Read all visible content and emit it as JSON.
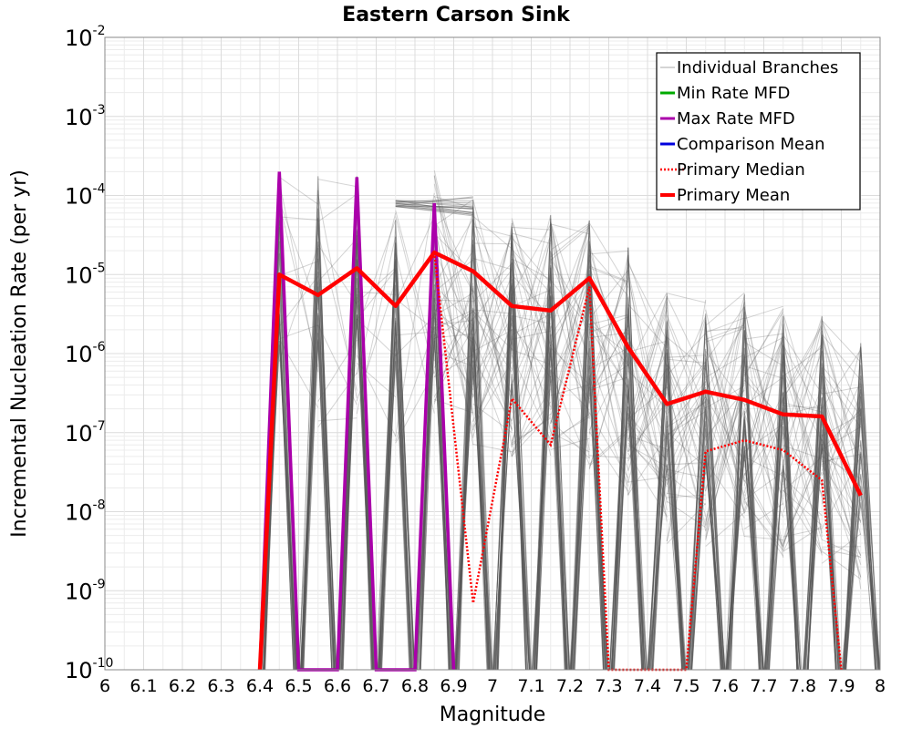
{
  "chart_data": {
    "type": "line",
    "title": "Eastern Carson Sink",
    "xlabel": "Magnitude",
    "ylabel": "Incremental Nucleation Rate (per yr)",
    "xlim": [
      6,
      8
    ],
    "ylim": [
      1e-10,
      0.01
    ],
    "y_scale": "log",
    "grid": true,
    "legend_position": "top-right",
    "x_ticks": [
      "6",
      "6.1",
      "6.2",
      "6.3",
      "6.4",
      "6.5",
      "6.6",
      "6.7",
      "6.8",
      "6.9",
      "7",
      "7.1",
      "7.2",
      "7.3",
      "7.4",
      "7.5",
      "7.6",
      "7.7",
      "7.8",
      "7.9",
      "8"
    ],
    "y_ticks": [
      {
        "base": "10",
        "exp": "-10",
        "value": 1e-10
      },
      {
        "base": "10",
        "exp": "-9",
        "value": 1e-09
      },
      {
        "base": "10",
        "exp": "-8",
        "value": 1e-08
      },
      {
        "base": "10",
        "exp": "-7",
        "value": 1e-07
      },
      {
        "base": "10",
        "exp": "-6",
        "value": 1e-06
      },
      {
        "base": "10",
        "exp": "-5",
        "value": 1e-05
      },
      {
        "base": "10",
        "exp": "-4",
        "value": 0.0001
      },
      {
        "base": "10",
        "exp": "-3",
        "value": 0.001
      },
      {
        "base": "10",
        "exp": "-2",
        "value": 0.01
      }
    ],
    "colors": {
      "individual": "#555555",
      "min_rate": "#00aa00",
      "max_rate": "#aa00aa",
      "comparison": "#0000dd",
      "primary": "#ff0000"
    },
    "legend": [
      {
        "label": "Individual Branches",
        "color": "#aaaaaa",
        "style": "thin"
      },
      {
        "label": "Min Rate MFD",
        "color": "#00aa00",
        "style": "solid"
      },
      {
        "label": "Max Rate MFD",
        "color": "#aa00aa",
        "style": "solid"
      },
      {
        "label": "Comparison Mean",
        "color": "#0000dd",
        "style": "solid"
      },
      {
        "label": " Primary Median",
        "color": "#ff0000",
        "style": "dotted"
      },
      {
        "label": "Primary Mean",
        "color": "#ff0000",
        "style": "thick"
      }
    ],
    "series": [
      {
        "name": "Primary Mean",
        "x": [
          6.4,
          6.45,
          6.55,
          6.65,
          6.75,
          6.85,
          6.95,
          7.05,
          7.15,
          7.25,
          7.35,
          7.45,
          7.55,
          7.65,
          7.75,
          7.85,
          7.95
        ],
        "y": [
          1e-10,
          1e-05,
          5.5e-06,
          1.2e-05,
          4e-06,
          1.9e-05,
          1.1e-05,
          4e-06,
          3.5e-06,
          9e-06,
          1.2e-06,
          2.3e-07,
          3.3e-07,
          2.6e-07,
          1.7e-07,
          1.6e-07,
          1.6e-08
        ]
      },
      {
        "name": "Primary Median",
        "x": [
          6.85,
          6.95,
          7.05,
          7.15,
          7.25,
          7.3,
          7.5,
          7.55,
          7.65,
          7.75,
          7.85,
          7.9
        ],
        "y": [
          1.9e-05,
          7e-10,
          2.7e-07,
          7e-08,
          7e-06,
          1e-10,
          1e-10,
          5.8e-08,
          8e-08,
          6e-08,
          2.5e-08,
          1e-10
        ]
      },
      {
        "name": "Max Rate MFD",
        "x": [
          6.4,
          6.45,
          6.5,
          6.6,
          6.65,
          6.7,
          6.8,
          6.85,
          6.9
        ],
        "y": [
          1e-10,
          0.0002,
          1e-10,
          1e-10,
          0.00017,
          1e-10,
          1e-10,
          8e-05,
          1e-10
        ]
      },
      {
        "name": "Individual Branches",
        "peak_x": [
          6.45,
          6.55,
          6.65,
          6.75,
          6.85,
          6.95,
          7.05,
          7.15,
          7.25,
          7.35,
          7.45,
          7.55,
          7.65,
          7.75,
          7.85,
          7.95
        ],
        "peak_max_y": [
          0.0002,
          0.00018,
          0.00018,
          9e-05,
          0.00022,
          9e-05,
          6e-05,
          6e-05,
          5e-05,
          2.5e-05,
          6e-06,
          5e-06,
          6e-06,
          4e-06,
          3e-06,
          1.5e-06
        ]
      }
    ]
  }
}
